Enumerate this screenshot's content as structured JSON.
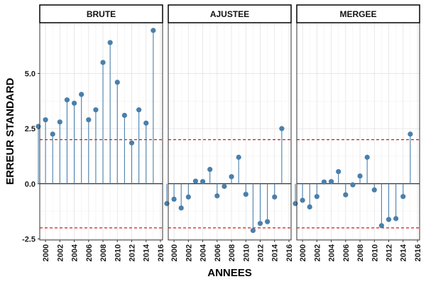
{
  "chart_data": {
    "type": "lollipop",
    "xlabel": "ANNEES",
    "ylabel": "ERREUR STANDARD",
    "x_ticks": [
      "2000",
      "2002",
      "2004",
      "2006",
      "2008",
      "2010",
      "2012",
      "2014",
      "2016"
    ],
    "y_ticks": [
      "-2.5",
      "0.0",
      "2.5",
      "5.0"
    ],
    "ylim": [
      -2.55,
      7.3
    ],
    "xlim": [
      1999.2,
      2016.3
    ],
    "reference_lines": [
      2.0,
      -2.0
    ],
    "reference_line_color": "#cc0000",
    "point_color": "#4a7fab",
    "stem_color": "#4a7fab",
    "grid": true,
    "x": [
      1999,
      2000,
      2001,
      2002,
      2003,
      2004,
      2005,
      2006,
      2007,
      2008,
      2009,
      2010,
      2011,
      2012,
      2013,
      2014,
      2015,
      2016
    ],
    "panels": [
      {
        "title": "BRUTE",
        "values": [
          2.6,
          2.9,
          2.25,
          2.8,
          3.8,
          3.65,
          4.05,
          2.9,
          3.35,
          5.5,
          6.4,
          4.6,
          3.1,
          1.85,
          3.35,
          2.75,
          6.95,
          null
        ]
      },
      {
        "title": "AJUSTEE",
        "values": [
          -0.9,
          -0.7,
          -1.1,
          -0.6,
          0.12,
          0.1,
          0.65,
          -0.55,
          -0.12,
          0.32,
          1.2,
          -0.48,
          -2.12,
          -1.8,
          -1.72,
          -0.6,
          2.5,
          null
        ]
      },
      {
        "title": "MERGEE",
        "values": [
          -0.9,
          -0.75,
          -1.05,
          -0.58,
          0.08,
          0.1,
          0.55,
          -0.5,
          -0.05,
          0.35,
          1.2,
          -0.28,
          -1.9,
          -1.62,
          -1.58,
          -0.58,
          2.25,
          null
        ]
      }
    ]
  }
}
